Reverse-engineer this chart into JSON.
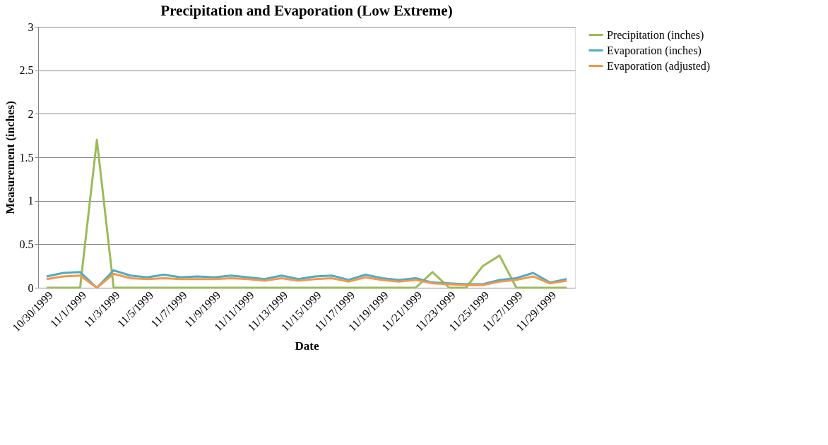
{
  "chart_data": {
    "type": "line",
    "title": "Precipitation and Evaporation (Low Extreme)",
    "xlabel": "Date",
    "ylabel": "Measurement (inches)",
    "categories": [
      "10/30/1999",
      null,
      "11/1/1999",
      null,
      "11/3/1999",
      null,
      "11/5/1999",
      null,
      "11/7/1999",
      null,
      "11/9/1999",
      null,
      "11/11/1999",
      null,
      "11/13/1999",
      null,
      "11/15/1999",
      null,
      "11/17/1999",
      null,
      "11/19/1999",
      null,
      "11/21/1999",
      null,
      "11/23/1999",
      null,
      "11/25/1999",
      null,
      "11/27/1999",
      null,
      "11/29/1999",
      null
    ],
    "series": [
      {
        "name": "Precipitation (inches)",
        "color": "#9bbb59",
        "values": [
          0,
          0,
          0,
          1.7,
          0,
          0,
          0,
          0,
          0,
          0,
          0,
          0,
          0,
          0,
          0,
          0,
          0,
          0,
          0,
          0,
          0,
          0,
          0,
          0.18,
          0,
          0,
          0.25,
          0.37,
          0,
          0,
          0,
          0
        ]
      },
      {
        "name": "Evaporation (inches)",
        "color": "#4bacc6",
        "values": [
          0.13,
          0.17,
          0.18,
          0,
          0.2,
          0.14,
          0.12,
          0.15,
          0.12,
          0.13,
          0.12,
          0.14,
          0.12,
          0.1,
          0.14,
          0.1,
          0.13,
          0.14,
          0.09,
          0.15,
          0.11,
          0.09,
          0.11,
          0.06,
          0.05,
          0.04,
          0.04,
          0.09,
          0.11,
          0.17,
          0.06,
          0.1
        ]
      },
      {
        "name": "Evaporation (adjusted)",
        "color": "#f79646",
        "values": [
          0.1,
          0.13,
          0.14,
          0,
          0.16,
          0.11,
          0.1,
          0.11,
          0.1,
          0.1,
          0.1,
          0.11,
          0.1,
          0.08,
          0.11,
          0.08,
          0.1,
          0.11,
          0.07,
          0.12,
          0.09,
          0.07,
          0.09,
          0.05,
          0.04,
          0.03,
          0.03,
          0.07,
          0.09,
          0.13,
          0.05,
          0.08
        ]
      }
    ],
    "ylim": [
      0,
      3
    ],
    "yticks": [
      0,
      0.5,
      1,
      1.5,
      2,
      2.5,
      3
    ],
    "grid": "y",
    "legend": "right",
    "marker": "none",
    "line_style": "solid"
  }
}
